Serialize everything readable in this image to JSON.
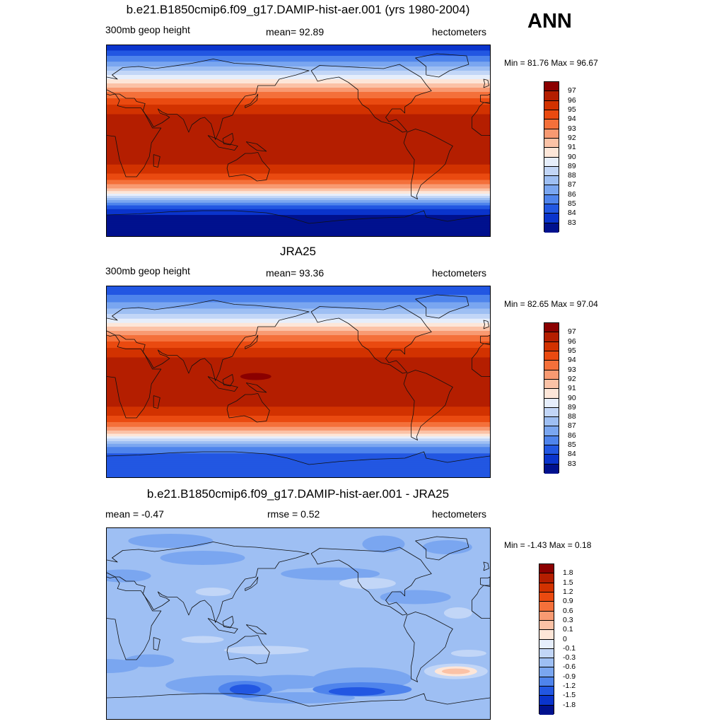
{
  "season": "ANN",
  "panels": [
    {
      "id": "model",
      "title": "b.e21.B1850cmip6.f09_g17.DAMIP-hist-aer.001 (yrs 1980-2004)",
      "left_label": "300mb geop height",
      "center_label": "mean=  92.89",
      "right_label": "hectometers",
      "minmax": "Min =  81.76 Max =  96.67",
      "colorbar_labels": [
        "97",
        "96",
        "95",
        "94",
        "93",
        "92",
        "91",
        "90",
        "89",
        "88",
        "87",
        "86",
        "85",
        "84",
        "83"
      ]
    },
    {
      "id": "obs",
      "title": "JRA25",
      "left_label": "300mb geop height",
      "center_label": "mean=  93.36",
      "right_label": "hectometers",
      "minmax": "Min =  82.65 Max =  97.04",
      "colorbar_labels": [
        "97",
        "96",
        "95",
        "94",
        "93",
        "92",
        "91",
        "90",
        "89",
        "88",
        "87",
        "86",
        "85",
        "84",
        "83"
      ]
    },
    {
      "id": "diff",
      "title": "b.e21.B1850cmip6.f09_g17.DAMIP-hist-aer.001 - JRA25",
      "left_label": "mean =  -0.47",
      "center_label": "rmse =   0.52",
      "right_label": "hectometers",
      "minmax": "Min =  -1.43 Max =   0.18",
      "colorbar_labels": [
        "1.8",
        "1.5",
        "1.2",
        "0.9",
        "0.6",
        "0.3",
        "0.1",
        "0",
        "-0.1",
        "-0.3",
        "-0.6",
        "-0.9",
        "-1.2",
        "-1.5",
        "-1.8"
      ]
    }
  ],
  "palette": [
    "#8b0000",
    "#b41e00",
    "#d23200",
    "#ea4a10",
    "#f4703a",
    "#f89a72",
    "#fbc2a6",
    "#fde6d8",
    "#e6eefb",
    "#c2d6f7",
    "#9ebff3",
    "#7aa6f0",
    "#4f84ec",
    "#2257e2",
    "#0a34cc",
    "#00118e"
  ],
  "zonal_profiles": {
    "model": [
      [
        90,
        83
      ],
      [
        80,
        85
      ],
      [
        72,
        86.5
      ],
      [
        66,
        88
      ],
      [
        60,
        89.5
      ],
      [
        52,
        91.5
      ],
      [
        46,
        93
      ],
      [
        40,
        94
      ],
      [
        32,
        95.3
      ],
      [
        22,
        96.3
      ],
      [
        0,
        96.6
      ],
      [
        -20,
        96.3
      ],
      [
        -30,
        95.2
      ],
      [
        -38,
        93.8
      ],
      [
        -44,
        92.3
      ],
      [
        -50,
        90
      ],
      [
        -56,
        87
      ],
      [
        -62,
        84.5
      ],
      [
        -70,
        83
      ],
      [
        -90,
        82
      ]
    ],
    "obs": [
      [
        90,
        84
      ],
      [
        78,
        85.5
      ],
      [
        70,
        86.8
      ],
      [
        63,
        88.2
      ],
      [
        57,
        89.6
      ],
      [
        51,
        91.3
      ],
      [
        45,
        92.8
      ],
      [
        38,
        94
      ],
      [
        30,
        95.3
      ],
      [
        20,
        96.3
      ],
      [
        0,
        96.7
      ],
      [
        -20,
        96.4
      ],
      [
        -30,
        95.3
      ],
      [
        -38,
        94
      ],
      [
        -44,
        92.6
      ],
      [
        -50,
        90.6
      ],
      [
        -56,
        88
      ],
      [
        -62,
        85.8
      ],
      [
        -70,
        84.6
      ],
      [
        -90,
        84.2
      ]
    ]
  },
  "diff_field": {
    "base": -0.45
  }
}
